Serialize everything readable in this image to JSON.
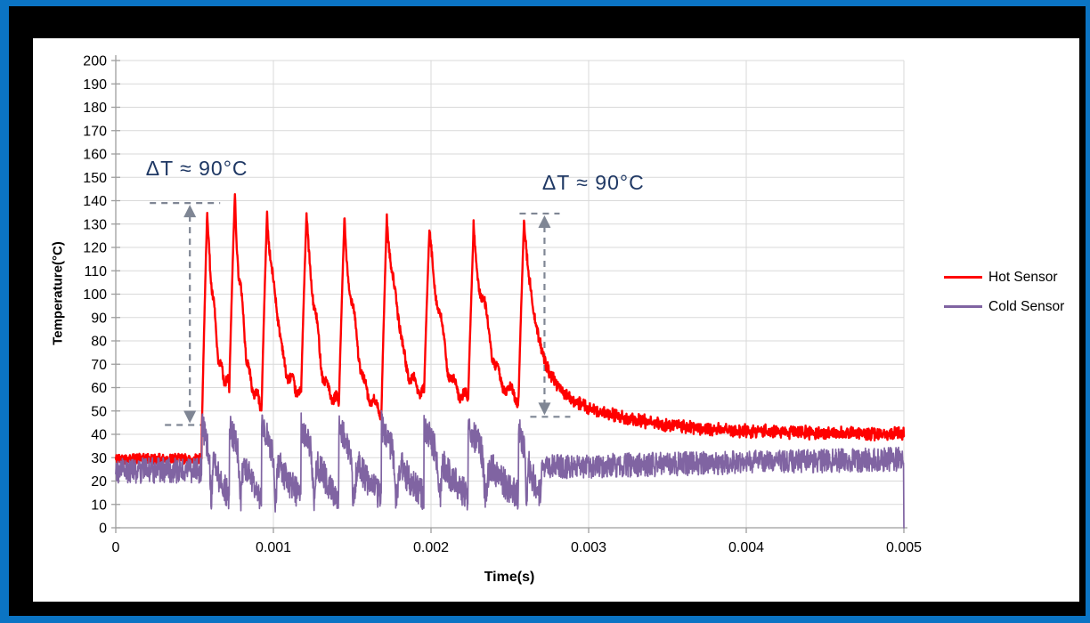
{
  "window": {
    "border_outer_color": "#0B74C4",
    "border_inner_color": "#000000",
    "chart_background": "#FFFFFF"
  },
  "chart_data": {
    "type": "line",
    "title": "",
    "xlabel": "Time(s)",
    "ylabel": "Temperature(°C)",
    "xlim": [
      0,
      0.005
    ],
    "ylim": [
      0,
      200
    ],
    "y_tick_step": 10,
    "x_ticks": [
      0,
      0.001,
      0.002,
      0.003,
      0.004,
      0.005
    ],
    "x_tick_labels": [
      "0",
      "0.001",
      "0.002",
      "0.003",
      "0.004",
      "0.005"
    ],
    "grid": true,
    "gridline_color": "#D9D9D9",
    "axis_color": "#9E9E9E",
    "tick_label_color": "#000000",
    "legend_position": "right",
    "sample_dt": 2e-06,
    "noise_seed": 42,
    "series": [
      {
        "name": "Hot Sensor",
        "color": "#FF0000",
        "baseline": {
          "t_end": 0.000545,
          "mean": 29.5,
          "noise": 2.2
        },
        "pulses": {
          "rise_time": 3.5e-05,
          "peak_t": [
            0.00058,
            0.000755,
            0.00096,
            0.00121,
            0.00145,
            0.00172,
            0.00199,
            0.00227,
            0.00259
          ],
          "peak_T": [
            136,
            142,
            136,
            134,
            131,
            134.5,
            128,
            127.5,
            131.5
          ],
          "valley_T": [
            58,
            50,
            55,
            50,
            47,
            55,
            52,
            53
          ]
        },
        "tail": {
          "t_start": 0.00259,
          "floor": 40,
          "fast_amp": 66,
          "fast_tau": 8e-05,
          "slow_amp": 25,
          "slow_tau": 0.0005,
          "noise": 3.2
        }
      },
      {
        "name": "Cold Sensor",
        "color": "#8064A2",
        "baseline": {
          "t_end": 0.000545,
          "mean": 24.5,
          "noise": 5.5
        },
        "sawtooth": {
          "start_T": 44,
          "end_T": 14,
          "dip_T": 18,
          "dip_u": 0.35,
          "dip_width": 0.05,
          "noise": 6.5,
          "t_end": 0.0027
        },
        "tail": {
          "mean_start": 26,
          "mean_end": 29.5,
          "noise": 5.2,
          "last_value": 0
        }
      }
    ],
    "annotations": [
      {
        "text": "ΔT ≈ 90°C",
        "arrow_t": 0.00047,
        "T_top": 139,
        "T_bottom": 44,
        "label_t": 0.000515,
        "label_T": 150
      },
      {
        "text": "ΔT ≈ 90°C",
        "arrow_t": 0.00272,
        "T_top": 134.5,
        "T_bottom": 47.5,
        "label_t": 0.00303,
        "label_T": 144
      }
    ],
    "annotation_color": "#1F3864",
    "arrow_color": "#7F8694"
  }
}
